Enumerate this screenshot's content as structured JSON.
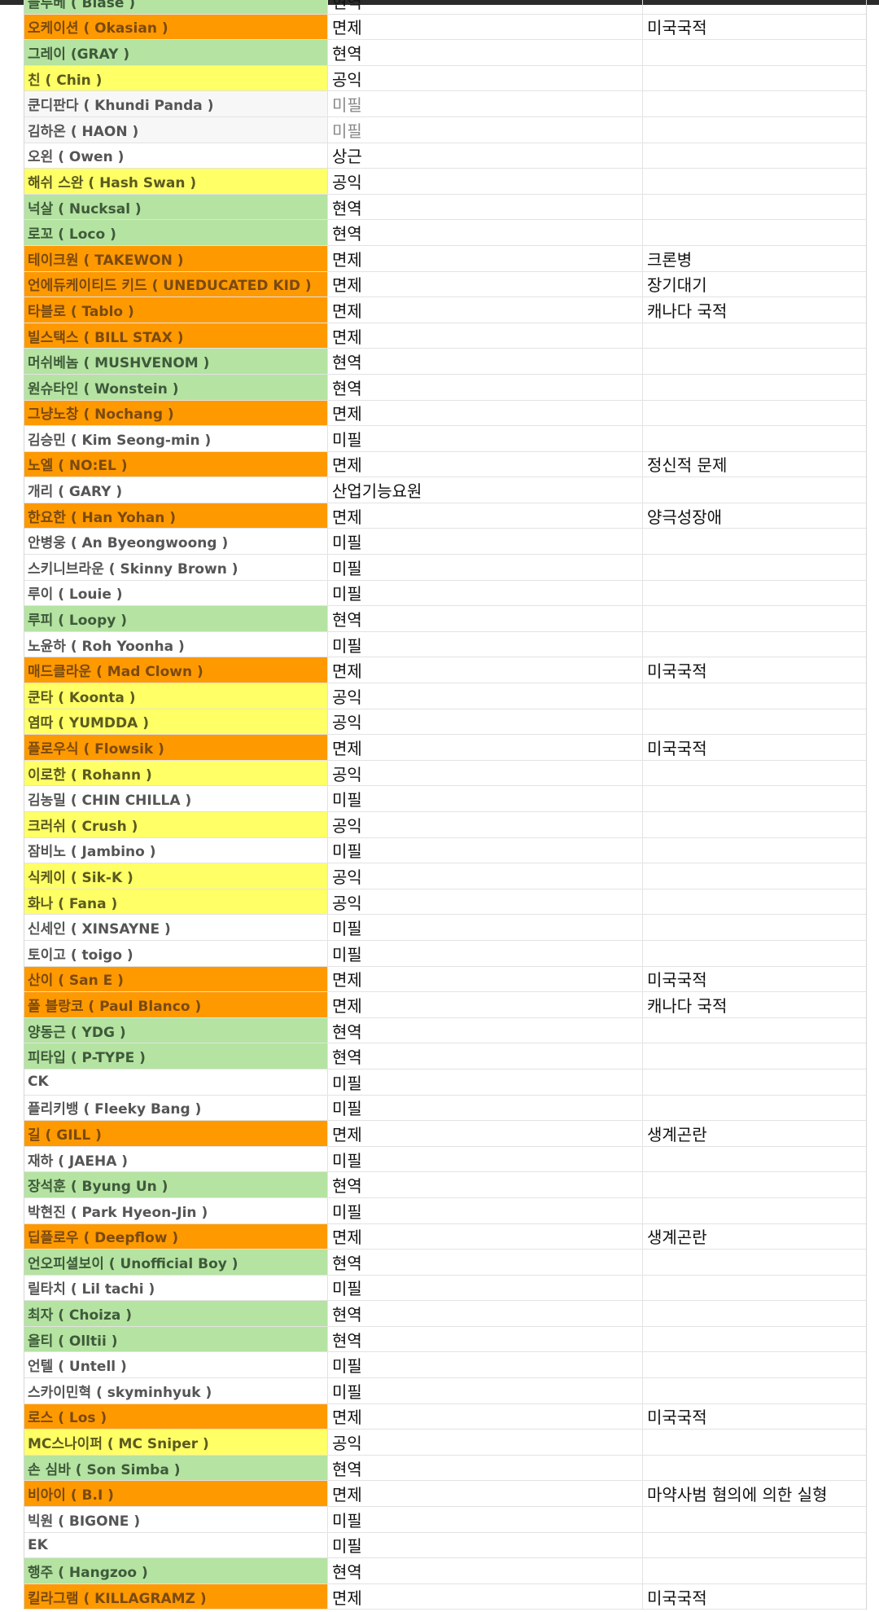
{
  "colors": {
    "exempt": "#ff9900",
    "active_duty": "#b5e3a2",
    "public_service": "#ffff66",
    "none": "#ffffff"
  },
  "table": {
    "rows": [
      {
        "name": "블루베 ( Blase )",
        "status": "현역",
        "note": "",
        "style": "active"
      },
      {
        "name": "오케이션 ( Okasian )",
        "status": "면제",
        "note": "미국국적",
        "style": "exempt"
      },
      {
        "name": "그레이 (GRAY )",
        "status": "현역",
        "note": "",
        "style": "active"
      },
      {
        "name": "친 ( Chin )",
        "status": "공익",
        "note": "",
        "style": "public"
      },
      {
        "name": "쿤디판다 ( Khundi Panda )",
        "status": "미필",
        "note": "",
        "style": "pending"
      },
      {
        "name": "김하온 ( HAON )",
        "status": "미필",
        "note": "",
        "style": "pending"
      },
      {
        "name": "오왼 ( Owen )",
        "status": "상근",
        "note": "",
        "style": "none"
      },
      {
        "name": "해쉬 스완 ( Hash Swan )",
        "status": "공익",
        "note": "",
        "style": "public"
      },
      {
        "name": "넉살 ( Nucksal )",
        "status": "현역",
        "note": "",
        "style": "active"
      },
      {
        "name": "로꼬 ( Loco )",
        "status": "현역",
        "note": "",
        "style": "active"
      },
      {
        "name": "테이크원 ( TAKEWON )",
        "status": "면제",
        "note": "크론병",
        "style": "exempt"
      },
      {
        "name": "언에듀케이티드 키드 ( UNEDUCATED KID )",
        "status": "면제",
        "note": "장기대기",
        "style": "exempt"
      },
      {
        "name": "타블로 ( Tablo )",
        "status": "면제",
        "note": "캐나다 국적",
        "style": "exempt"
      },
      {
        "name": "빌스택스 ( BILL STAX )",
        "status": "면제",
        "note": "",
        "style": "exempt"
      },
      {
        "name": "머쉬베놈 ( MUSHVENOM )",
        "status": "현역",
        "note": "",
        "style": "active"
      },
      {
        "name": "원슈타인 ( Wonstein )",
        "status": "현역",
        "note": "",
        "style": "active"
      },
      {
        "name": "그냥노창 ( Nochang )",
        "status": "면제",
        "note": "",
        "style": "exempt"
      },
      {
        "name": "김승민 ( Kim Seong-min )",
        "status": "미필",
        "note": "",
        "style": "none"
      },
      {
        "name": "노엘 ( NO:EL )",
        "status": "면제",
        "note": "정신적 문제",
        "style": "exempt"
      },
      {
        "name": "개리 ( GARY )",
        "status": "산업기능요원",
        "note": "",
        "style": "none"
      },
      {
        "name": "한요한 ( Han Yohan )",
        "status": "면제",
        "note": "양극성장애",
        "style": "exempt"
      },
      {
        "name": "안병웅 ( An Byeongwoong )",
        "status": "미필",
        "note": "",
        "style": "none"
      },
      {
        "name": "스키니브라운 ( Skinny Brown )",
        "status": "미필",
        "note": "",
        "style": "none"
      },
      {
        "name": "루이 ( Louie )",
        "status": "미필",
        "note": "",
        "style": "none"
      },
      {
        "name": "루피 ( Loopy )",
        "status": "현역",
        "note": "",
        "style": "active"
      },
      {
        "name": "노윤하 ( Roh Yoonha )",
        "status": "미필",
        "note": "",
        "style": "none"
      },
      {
        "name": "매드클라운 ( Mad Clown )",
        "status": "면제",
        "note": "미국국적",
        "style": "exempt"
      },
      {
        "name": "쿤타 ( Koonta )",
        "status": "공익",
        "note": "",
        "style": "public"
      },
      {
        "name": "염따 ( YUMDDA )",
        "status": "공익",
        "note": "",
        "style": "public"
      },
      {
        "name": "플로우식 ( Flowsik )",
        "status": "면제",
        "note": "미국국적",
        "style": "exempt"
      },
      {
        "name": "이로한 ( Rohann )",
        "status": "공익",
        "note": "",
        "style": "public"
      },
      {
        "name": "김농밀 ( CHIN CHILLA )",
        "status": "미필",
        "note": "",
        "style": "none"
      },
      {
        "name": "크러쉬 ( Crush )",
        "status": "공익",
        "note": "",
        "style": "public"
      },
      {
        "name": "잠비노 ( Jambino )",
        "status": "미필",
        "note": "",
        "style": "none"
      },
      {
        "name": "식케이 ( Sik-K )",
        "status": "공익",
        "note": "",
        "style": "public"
      },
      {
        "name": "화나 ( Fana )",
        "status": "공익",
        "note": "",
        "style": "public"
      },
      {
        "name": "신세인 ( XINSAYNE )",
        "status": "미필",
        "note": "",
        "style": "none"
      },
      {
        "name": "토이고 ( toigo )",
        "status": "미필",
        "note": "",
        "style": "none"
      },
      {
        "name": "산이 ( San E )",
        "status": "면제",
        "note": "미국국적",
        "style": "exempt"
      },
      {
        "name": "폴 블랑코 ( Paul Blanco )",
        "status": "면제",
        "note": "캐나다 국적",
        "style": "exempt"
      },
      {
        "name": "양동근 ( YDG )",
        "status": "현역",
        "note": "",
        "style": "active"
      },
      {
        "name": "피타입 ( P-TYPE )",
        "status": "현역",
        "note": "",
        "style": "active"
      },
      {
        "name": "CK",
        "status": "미필",
        "note": "",
        "style": "none"
      },
      {
        "name": "플리키뱅 ( Fleeky Bang )",
        "status": "미필",
        "note": "",
        "style": "none"
      },
      {
        "name": "길 ( GILL )",
        "status": "면제",
        "note": "생계곤란",
        "style": "exempt"
      },
      {
        "name": "재하 ( JAEHA )",
        "status": "미필",
        "note": "",
        "style": "none"
      },
      {
        "name": "장석훈 ( Byung Un )",
        "status": "현역",
        "note": "",
        "style": "active"
      },
      {
        "name": "박현진 ( Park Hyeon-Jin )",
        "status": "미필",
        "note": "",
        "style": "none"
      },
      {
        "name": "딥플로우 ( Deepflow )",
        "status": "면제",
        "note": "생계곤란",
        "style": "exempt"
      },
      {
        "name": "언오피셜보이 ( Unofficial Boy )",
        "status": "현역",
        "note": "",
        "style": "active"
      },
      {
        "name": "릴타치 ( Lil tachi )",
        "status": "미필",
        "note": "",
        "style": "none"
      },
      {
        "name": "최자 ( Choiza )",
        "status": "현역",
        "note": "",
        "style": "active"
      },
      {
        "name": "올티 ( Olltii )",
        "status": "현역",
        "note": "",
        "style": "active"
      },
      {
        "name": "언텔 ( Untell )",
        "status": "미필",
        "note": "",
        "style": "none"
      },
      {
        "name": "스카이민혁 ( skyminhyuk )",
        "status": "미필",
        "note": "",
        "style": "none"
      },
      {
        "name": "로스 ( Los )",
        "status": "면제",
        "note": "미국국적",
        "style": "exempt"
      },
      {
        "name": "MC스나이퍼 ( MC Sniper )",
        "status": "공익",
        "note": "",
        "style": "public"
      },
      {
        "name": "손 심바 ( Son Simba )",
        "status": "현역",
        "note": "",
        "style": "active"
      },
      {
        "name": "비아이 ( B.I )",
        "status": "면제",
        "note": "마약사범 혐의에 의한 실형",
        "style": "exempt"
      },
      {
        "name": "빅원 ( BIGONE )",
        "status": "미필",
        "note": "",
        "style": "none"
      },
      {
        "name": "EK",
        "status": "미필",
        "note": "",
        "style": "none"
      },
      {
        "name": "행주 ( Hangzoo )",
        "status": "현역",
        "note": "",
        "style": "active"
      },
      {
        "name": "킬라그램 ( KILLAGRAMZ )",
        "status": "면제",
        "note": "미국국적",
        "style": "exempt"
      }
    ]
  }
}
